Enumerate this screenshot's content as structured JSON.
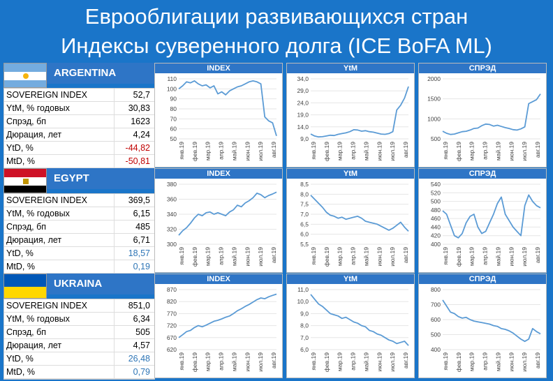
{
  "title_line1": "Еврооблигации развивающихся стран",
  "title_line2": "Индексы суверенного долга (ICE BoFA ML)",
  "colors": {
    "background": "#1a75c9",
    "header": "#2e75c6",
    "line": "#5b9bd5",
    "negative": "#c00000",
    "positive": "#2e75b6"
  },
  "month_labels": [
    "янв.19",
    "фев.19",
    "мар.19",
    "апр.19",
    "май.19",
    "июн.19",
    "июл.19",
    "авг.19"
  ],
  "countries": [
    {
      "name": "ARGENTINA",
      "table": [
        {
          "label": "SOVEREIGN INDEX",
          "value": "52,7",
          "tone": "neutral"
        },
        {
          "label": "YtM, % годовых",
          "value": "30,83",
          "tone": "neutral"
        },
        {
          "label": "Спрэд, бп",
          "value": "1623",
          "tone": "neutral"
        },
        {
          "label": "Дюрация, лет",
          "value": "4,24",
          "tone": "neutral"
        },
        {
          "label": "YtD, %",
          "value": "-44,82",
          "tone": "negative"
        },
        {
          "label": "MtD, %",
          "value": "-50,81",
          "tone": "negative"
        }
      ]
    },
    {
      "name": "EGYPT",
      "table": [
        {
          "label": "SOVEREIGN INDEX",
          "value": "369,5",
          "tone": "neutral"
        },
        {
          "label": "YtM, % годовых",
          "value": "6,15",
          "tone": "neutral"
        },
        {
          "label": "Спрэд, бп",
          "value": "485",
          "tone": "neutral"
        },
        {
          "label": "Дюрация, лет",
          "value": "6,71",
          "tone": "neutral"
        },
        {
          "label": "YtD, %",
          "value": "18,57",
          "tone": "positive"
        },
        {
          "label": "MtD, %",
          "value": "0,19",
          "tone": "positive"
        }
      ]
    },
    {
      "name": "UKRAINA",
      "table": [
        {
          "label": "SOVEREIGN INDEX",
          "value": "851,0",
          "tone": "neutral"
        },
        {
          "label": "YtM, % годовых",
          "value": "6,34",
          "tone": "neutral"
        },
        {
          "label": "Спрэд, бп",
          "value": "505",
          "tone": "neutral"
        },
        {
          "label": "Дюрация, лет",
          "value": "4,57",
          "tone": "neutral"
        },
        {
          "label": "YtD, %",
          "value": "26,48",
          "tone": "positive"
        },
        {
          "label": "MtD, %",
          "value": "0,79",
          "tone": "positive"
        }
      ]
    }
  ],
  "chart_data": [
    {
      "type": "line",
      "country": "ARGENTINA",
      "title": "INDEX",
      "ylim": [
        50,
        110
      ],
      "yticks": [
        "50",
        "60",
        "70",
        "80",
        "90",
        "100",
        "110"
      ],
      "values": [
        100,
        103,
        107,
        106,
        108,
        105,
        103,
        104,
        101,
        103,
        95,
        97,
        94,
        98,
        100,
        102,
        103,
        105,
        107,
        108,
        107,
        105,
        72,
        68,
        66,
        53
      ]
    },
    {
      "type": "line",
      "country": "ARGENTINA",
      "title": "YtM",
      "ylim": [
        9,
        34
      ],
      "yticks": [
        "9,0",
        "14,0",
        "19,0",
        "24,0",
        "29,0",
        "34,0"
      ],
      "values": [
        11,
        10.2,
        9.8,
        9.9,
        10.2,
        10.5,
        10.4,
        10.9,
        11.2,
        11.5,
        12,
        12.8,
        12.7,
        12.2,
        12.4,
        12,
        11.8,
        11.4,
        11,
        10.9,
        11.2,
        12,
        21,
        23,
        26,
        30.8
      ]
    },
    {
      "type": "line",
      "country": "ARGENTINA",
      "title": "СПРЭД",
      "ylim": [
        500,
        2000
      ],
      "yticks": [
        "500",
        "1000",
        "1500",
        "2000"
      ],
      "values": [
        690,
        640,
        610,
        620,
        650,
        680,
        690,
        720,
        760,
        770,
        830,
        870,
        860,
        820,
        840,
        810,
        780,
        760,
        730,
        720,
        750,
        800,
        1380,
        1430,
        1480,
        1623
      ]
    },
    {
      "type": "line",
      "country": "EGYPT",
      "title": "INDEX",
      "ylim": [
        300,
        380
      ],
      "yticks": [
        "300",
        "320",
        "340",
        "360",
        "380"
      ],
      "values": [
        312,
        318,
        322,
        328,
        335,
        340,
        338,
        342,
        343,
        340,
        342,
        340,
        338,
        343,
        346,
        352,
        350,
        355,
        358,
        362,
        368,
        366,
        362,
        365,
        367,
        369.5
      ]
    },
    {
      "type": "line",
      "country": "EGYPT",
      "title": "YtM",
      "ylim": [
        5.5,
        8.5
      ],
      "yticks": [
        "5,5",
        "6,0",
        "6,5",
        "7,0",
        "7,5",
        "8,0",
        "8,5"
      ],
      "values": [
        7.95,
        7.75,
        7.55,
        7.35,
        7.1,
        6.95,
        6.9,
        6.8,
        6.85,
        6.75,
        6.8,
        6.85,
        6.9,
        6.8,
        6.65,
        6.6,
        6.55,
        6.5,
        6.4,
        6.3,
        6.2,
        6.3,
        6.45,
        6.6,
        6.35,
        6.15
      ]
    },
    {
      "type": "line",
      "country": "EGYPT",
      "title": "СПРЭД",
      "ylim": [
        400,
        540
      ],
      "yticks": [
        "400",
        "420",
        "440",
        "460",
        "480",
        "500",
        "520",
        "540"
      ],
      "values": [
        478,
        470,
        445,
        420,
        415,
        425,
        450,
        465,
        470,
        440,
        425,
        430,
        450,
        470,
        495,
        510,
        470,
        455,
        440,
        430,
        420,
        490,
        515,
        500,
        490,
        485
      ]
    },
    {
      "type": "line",
      "country": "UKRAINA",
      "title": "INDEX",
      "ylim": [
        620,
        870
      ],
      "yticks": [
        "620",
        "670",
        "720",
        "770",
        "820",
        "870"
      ],
      "values": [
        670,
        682,
        695,
        700,
        712,
        720,
        715,
        722,
        730,
        738,
        742,
        748,
        755,
        760,
        770,
        782,
        790,
        800,
        808,
        818,
        828,
        835,
        832,
        840,
        846,
        851
      ]
    },
    {
      "type": "line",
      "country": "UKRAINA",
      "title": "YtM",
      "ylim": [
        6,
        11
      ],
      "yticks": [
        "6,0",
        "7,0",
        "8,0",
        "9,0",
        "10,0",
        "11,0"
      ],
      "values": [
        10.6,
        10.2,
        9.8,
        9.6,
        9.3,
        9.0,
        8.9,
        8.8,
        8.6,
        8.7,
        8.5,
        8.3,
        8.2,
        8.0,
        7.9,
        7.6,
        7.5,
        7.3,
        7.2,
        7.0,
        6.8,
        6.7,
        6.5,
        6.6,
        6.7,
        6.34
      ]
    },
    {
      "type": "line",
      "country": "UKRAINA",
      "title": "СПРЭД",
      "ylim": [
        400,
        800
      ],
      "yticks": [
        "400",
        "500",
        "600",
        "700",
        "800"
      ],
      "values": [
        730,
        690,
        650,
        640,
        620,
        610,
        615,
        600,
        590,
        585,
        580,
        575,
        570,
        560,
        555,
        540,
        535,
        525,
        510,
        490,
        470,
        455,
        470,
        540,
        520,
        505
      ]
    }
  ]
}
